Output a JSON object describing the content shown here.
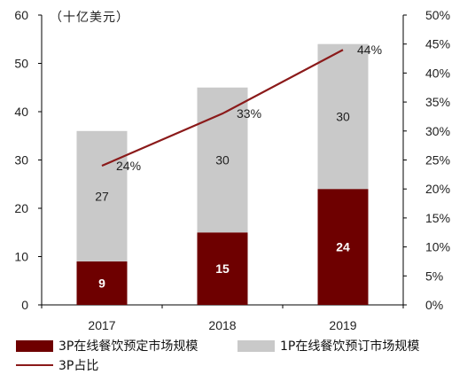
{
  "unit_label": "（十亿美元）",
  "legend": {
    "series_3p": "3P在线餐饮预定市场规模",
    "series_1p": "1P在线餐饮预订市场规模",
    "series_share": "3P占比"
  },
  "colors": {
    "series_3p": "#6e0000",
    "series_1p": "#c9c9c9",
    "line": "#8b1a1a",
    "label_3p": "#ffffff",
    "label_1p": "#222222"
  },
  "chart_data": {
    "type": "bar",
    "stacked": true,
    "categories": [
      "2017",
      "2018",
      "2019"
    ],
    "series": [
      {
        "name": "3P在线餐饮预定市场规模",
        "values": [
          9,
          15,
          24
        ],
        "data_labels": [
          "9",
          "15",
          "24"
        ]
      },
      {
        "name": "1P在线餐饮预订市场规模",
        "values": [
          27,
          30,
          30
        ],
        "data_labels": [
          "27",
          "30",
          "30"
        ]
      }
    ],
    "line_series": {
      "name": "3P占比",
      "axis": "right",
      "values": [
        24,
        33,
        44
      ],
      "data_labels": [
        "24%",
        "33%",
        "44%"
      ]
    },
    "ylim": [
      0,
      60
    ],
    "yticks": [
      "0",
      "10",
      "20",
      "30",
      "40",
      "50",
      "60"
    ],
    "y2lim": [
      0,
      50
    ],
    "y2ticks": [
      "0%",
      "5%",
      "10%",
      "15%",
      "20%",
      "25%",
      "30%",
      "35%",
      "40%",
      "45%",
      "50%"
    ],
    "grid": false,
    "legend_position": "bottom"
  }
}
